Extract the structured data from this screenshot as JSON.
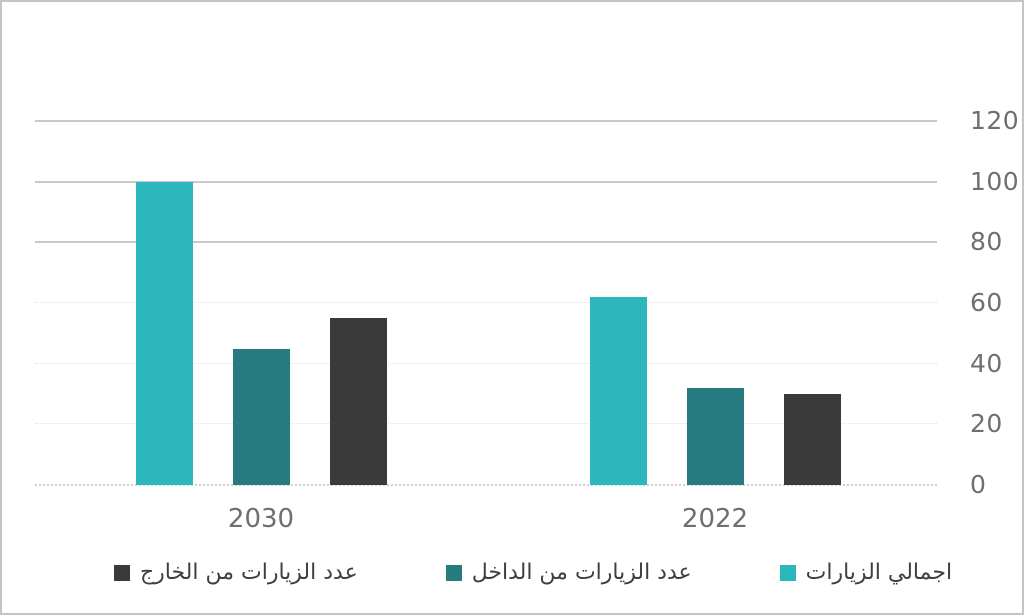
{
  "chart_data": {
    "type": "bar",
    "title": "",
    "rtl": true,
    "axis_side": "right",
    "categories": [
      "2030",
      "2022"
    ],
    "series": [
      {
        "name": "اجمالي الزيارات",
        "color": "#2bb7bb",
        "values": [
          100,
          62
        ]
      },
      {
        "name": "عدد الزيارات من الداخل",
        "color": "#267b81",
        "values": [
          45,
          32
        ]
      },
      {
        "name": "عدد الزيارات من الخارج",
        "color": "#3a3a3a",
        "values": [
          55,
          30
        ]
      }
    ],
    "ylim": [
      0,
      120
    ],
    "yticks": [
      0,
      20,
      40,
      60,
      80,
      100,
      120
    ],
    "solid_gridlines": [
      80,
      100,
      120
    ],
    "grid": true,
    "legend_position": "bottom"
  },
  "colors": {
    "frame_border": "#c4c4c4",
    "grid_solid": "#c9c9c9",
    "grid_dotted": "#e2e2e2",
    "tick_text": "#6f6f6f",
    "legend_text": "#3f3f3f",
    "background": "#ffffff"
  }
}
